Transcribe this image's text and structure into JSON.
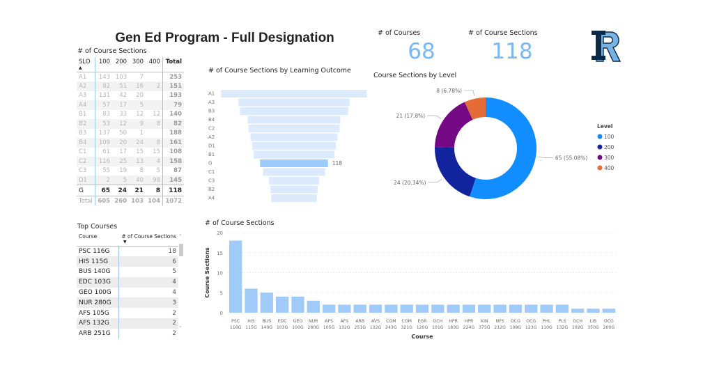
{
  "title": "Gen Ed Program - Full Designation",
  "matrix": {
    "title": "# of Course Sections",
    "headers": [
      "SLO",
      "100",
      "200",
      "300",
      "400",
      "Total"
    ],
    "rows": [
      [
        "A1",
        "143",
        "103",
        "7",
        "",
        "253"
      ],
      [
        "A2",
        "82",
        "51",
        "16",
        "2",
        "151"
      ],
      [
        "A3",
        "131",
        "42",
        "20",
        "",
        "193"
      ],
      [
        "A4",
        "57",
        "17",
        "5",
        "",
        "79"
      ],
      [
        "B1",
        "83",
        "33",
        "12",
        "12",
        "140"
      ],
      [
        "B2",
        "53",
        "12",
        "9",
        "8",
        "82"
      ],
      [
        "B3",
        "137",
        "50",
        "1",
        "",
        "188"
      ],
      [
        "B4",
        "109",
        "20",
        "24",
        "8",
        "161"
      ],
      [
        "C1",
        "61",
        "17",
        "15",
        "15",
        "108"
      ],
      [
        "C2",
        "116",
        "25",
        "13",
        "4",
        "158"
      ],
      [
        "C3",
        "55",
        "19",
        "8",
        "5",
        "87"
      ],
      [
        "D1",
        "2",
        "5",
        "40",
        "98",
        "145"
      ],
      [
        "G",
        "65",
        "24",
        "21",
        "8",
        "118"
      ]
    ],
    "total": [
      "Total",
      "605",
      "260",
      "103",
      "104",
      "1072"
    ]
  },
  "top_courses": {
    "title": "Top Courses",
    "headers": [
      "Course",
      "# of Course Sections"
    ],
    "rows": [
      [
        "PSC 116G",
        "18"
      ],
      [
        "HIS 115G",
        "6"
      ],
      [
        "BUS 140G",
        "5"
      ],
      [
        "EDC 103G",
        "4"
      ],
      [
        "GEO 100G",
        "4"
      ],
      [
        "NUR 280G",
        "3"
      ],
      [
        "AFS 105G",
        "2"
      ],
      [
        "AFS 132G",
        "2"
      ],
      [
        "ARB 251G",
        "2"
      ]
    ]
  },
  "kpis": {
    "courses_label": "# of Courses",
    "courses_value": "68",
    "sections_label": "# of Course Sections",
    "sections_value": "118"
  },
  "logo": {
    "text": "RI"
  },
  "chart_data": [
    {
      "type": "bar",
      "subtype": "funnel",
      "title": "# of Course Sections by Learning Outcome",
      "categories": [
        "A1",
        "A3",
        "B3",
        "B4",
        "C2",
        "A2",
        "D1",
        "B1",
        "G",
        "C1",
        "C3",
        "B2",
        "A4"
      ],
      "values": [
        253,
        193,
        188,
        161,
        158,
        151,
        145,
        140,
        118,
        108,
        87,
        82,
        79
      ],
      "highlight": "G",
      "data_label": "118",
      "colors": {
        "base": "#dbeafc",
        "highlight": "#9ccbfb"
      }
    },
    {
      "type": "pie",
      "subtype": "donut",
      "title": "Course Sections by Level",
      "legend_title": "Level",
      "legend_position": "right",
      "categories": [
        "100",
        "200",
        "300",
        "400"
      ],
      "values": [
        65,
        24,
        21,
        8
      ],
      "labels": [
        "65 (55.08%)",
        "24 (20.34%)",
        "21 (17.8%)",
        "8 (6.78%)"
      ],
      "colors": [
        "#118dff",
        "#12239e",
        "#750985",
        "#e66c37"
      ]
    },
    {
      "type": "bar",
      "title": "# of Course Sections",
      "xlabel": "Course",
      "ylabel": "Course Sections",
      "ylim": [
        0,
        20
      ],
      "yticks": [
        "0",
        "5",
        "10",
        "15",
        "20"
      ],
      "grid": true,
      "categories": [
        [
          "PSC",
          "116G"
        ],
        [
          "HIS",
          "115G"
        ],
        [
          "BUS",
          "140G"
        ],
        [
          "EDC",
          "103G"
        ],
        [
          "GEO",
          "100G"
        ],
        [
          "NUR",
          "280G"
        ],
        [
          "AFS",
          "105G"
        ],
        [
          "AFS",
          "132G"
        ],
        [
          "ARB",
          "251G"
        ],
        [
          "AVS",
          "132G"
        ],
        [
          "COM",
          "243G"
        ],
        [
          "COM",
          "321G"
        ],
        [
          "EGR",
          "120G"
        ],
        [
          "GCH",
          "101G"
        ],
        [
          "HPR",
          "183G"
        ],
        [
          "HPR",
          "224G"
        ],
        [
          "KIN",
          "375G"
        ],
        [
          "NFS",
          "212G"
        ],
        [
          "OCG",
          "108G"
        ],
        [
          "OCG",
          "123G"
        ],
        [
          "PHL",
          "110G"
        ],
        [
          "PLS",
          "132G"
        ],
        [
          "GCH",
          "102G"
        ],
        [
          "LIB",
          "350G"
        ],
        [
          "OCG",
          "200G"
        ]
      ],
      "values": [
        18,
        6,
        5,
        4,
        4,
        3,
        2,
        2,
        2,
        2,
        2,
        2,
        2,
        2,
        2,
        2,
        2,
        2,
        2,
        2,
        2,
        2,
        1,
        1,
        1
      ],
      "color": "#a0cbf8"
    }
  ]
}
